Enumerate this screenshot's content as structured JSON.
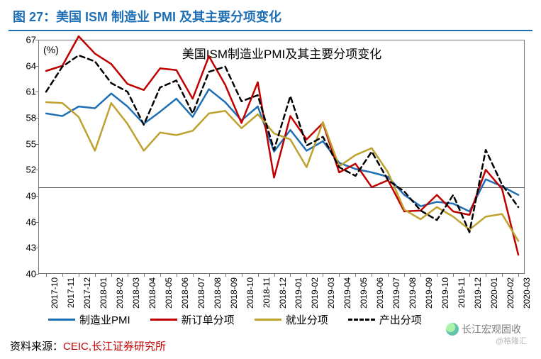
{
  "figure_title": "图 27：美国 ISM 制造业 PMI 及其主要分项变化",
  "chart_inner_title": "美国ISM制造业PMI及其主要分项变化",
  "y_unit": "(%)",
  "source_label": "资料来源：",
  "source_value": "CEIC,长江证券研究所",
  "watermark": "长江宏观固收",
  "subwatermark": "@格隆汇",
  "chart": {
    "type": "line",
    "ylim": [
      40,
      67
    ],
    "ytick_step": 3,
    "yticks": [
      40,
      43,
      46,
      49,
      52,
      55,
      58,
      61,
      64,
      67
    ],
    "ref_line_y": 50,
    "background_color": "#ffffff",
    "axis_color": "#777777",
    "line_width": 2.5,
    "dash_line_width": 2.5,
    "title_fontsize": 17,
    "label_fontsize": 13,
    "tick_fontsize": 12,
    "x_labels": [
      "2017-10",
      "2017-11",
      "2017-12",
      "2018-01",
      "2018-02",
      "2018-03",
      "2018-04",
      "2018-05",
      "2018-06",
      "2018-07",
      "2018-08",
      "2018-09",
      "2018-10",
      "2018-11",
      "2018-12",
      "2019-01",
      "2019-02",
      "2019-03",
      "2019-04",
      "2019-05",
      "2019-06",
      "2019-07",
      "2019-08",
      "2019-09",
      "2019-10",
      "2019-11",
      "2019-12",
      "2020-01",
      "2020-02",
      "2020-03"
    ],
    "series": [
      {
        "name": "制造业PMI",
        "color": "#1f6fb5",
        "style": "solid",
        "values": [
          58.5,
          58.2,
          59.3,
          59.1,
          60.8,
          59.3,
          57.3,
          58.7,
          60.2,
          58.1,
          61.3,
          59.8,
          57.7,
          59.3,
          54.1,
          56.6,
          54.2,
          55.3,
          52.8,
          52.1,
          51.7,
          51.2,
          49.1,
          47.8,
          48.3,
          48.1,
          47.2,
          50.9,
          50.1,
          49.1
        ]
      },
      {
        "name": "新订单分项",
        "color": "#c00000",
        "style": "solid",
        "values": [
          63.4,
          64.0,
          67.4,
          65.4,
          64.2,
          61.9,
          61.2,
          63.7,
          63.5,
          60.2,
          65.1,
          61.8,
          57.4,
          62.1,
          51.1,
          58.2,
          55.5,
          57.4,
          51.7,
          52.7,
          50.0,
          50.8,
          47.2,
          47.3,
          49.1,
          47.2,
          46.8,
          52.0,
          49.8,
          42.2
        ]
      },
      {
        "name": "就业分项",
        "color": "#bfa12f",
        "style": "solid",
        "values": [
          59.8,
          59.7,
          58.1,
          54.2,
          59.7,
          57.3,
          54.2,
          56.3,
          56.0,
          56.5,
          58.5,
          58.8,
          56.8,
          58.4,
          56.2,
          55.5,
          52.3,
          57.5,
          52.4,
          53.7,
          54.5,
          51.7,
          47.4,
          46.3,
          47.7,
          46.6,
          45.1,
          46.6,
          46.9,
          43.8
        ]
      },
      {
        "name": "产出分项",
        "color": "#000000",
        "style": "dashed",
        "values": [
          61.0,
          63.9,
          65.2,
          64.5,
          62.0,
          61.0,
          57.2,
          61.5,
          62.3,
          58.5,
          63.3,
          63.9,
          59.9,
          60.6,
          54.3,
          60.5,
          54.8,
          55.8,
          52.3,
          51.3,
          54.1,
          50.8,
          49.5,
          47.3,
          46.2,
          49.1,
          44.8,
          54.3,
          50.3,
          47.7
        ]
      }
    ],
    "legend": [
      {
        "label": "制造业PMI",
        "color": "#1f6fb5",
        "style": "solid"
      },
      {
        "label": "新订单分项",
        "color": "#c00000",
        "style": "solid"
      },
      {
        "label": "就业分项",
        "color": "#bfa12f",
        "style": "solid"
      },
      {
        "label": "产出分项",
        "color": "#000000",
        "style": "dashed"
      }
    ]
  }
}
